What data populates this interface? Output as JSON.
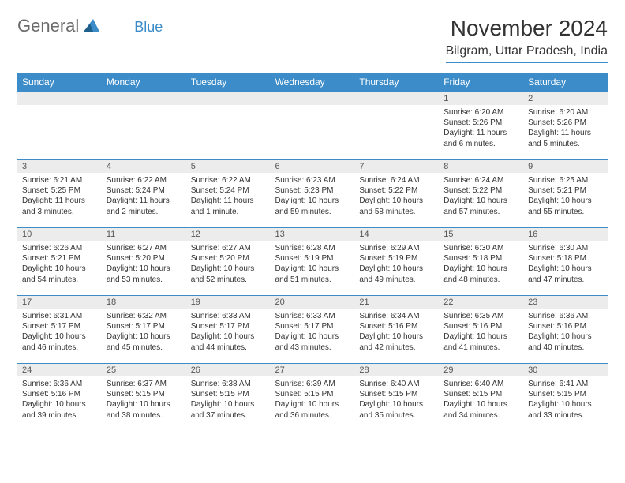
{
  "logo": {
    "text1": "General",
    "text2": "Blue"
  },
  "title": "November 2024",
  "location": "Bilgram, Uttar Pradesh, India",
  "colors": {
    "header_bg": "#3b8cc9",
    "header_text": "#ffffff",
    "daynum_bg": "#ececec",
    "body_text": "#333333",
    "logo_gray": "#6b6b6b",
    "logo_blue": "#3b8cc9",
    "border": "#3b8cc9"
  },
  "daysOfWeek": [
    "Sunday",
    "Monday",
    "Tuesday",
    "Wednesday",
    "Thursday",
    "Friday",
    "Saturday"
  ],
  "firstWeekday": 5,
  "daysInMonth": 30,
  "cells": {
    "1": {
      "sunrise": "6:20 AM",
      "sunset": "5:26 PM",
      "daylight": "11 hours and 6 minutes."
    },
    "2": {
      "sunrise": "6:20 AM",
      "sunset": "5:26 PM",
      "daylight": "11 hours and 5 minutes."
    },
    "3": {
      "sunrise": "6:21 AM",
      "sunset": "5:25 PM",
      "daylight": "11 hours and 3 minutes."
    },
    "4": {
      "sunrise": "6:22 AM",
      "sunset": "5:24 PM",
      "daylight": "11 hours and 2 minutes."
    },
    "5": {
      "sunrise": "6:22 AM",
      "sunset": "5:24 PM",
      "daylight": "11 hours and 1 minute."
    },
    "6": {
      "sunrise": "6:23 AM",
      "sunset": "5:23 PM",
      "daylight": "10 hours and 59 minutes."
    },
    "7": {
      "sunrise": "6:24 AM",
      "sunset": "5:22 PM",
      "daylight": "10 hours and 58 minutes."
    },
    "8": {
      "sunrise": "6:24 AM",
      "sunset": "5:22 PM",
      "daylight": "10 hours and 57 minutes."
    },
    "9": {
      "sunrise": "6:25 AM",
      "sunset": "5:21 PM",
      "daylight": "10 hours and 55 minutes."
    },
    "10": {
      "sunrise": "6:26 AM",
      "sunset": "5:21 PM",
      "daylight": "10 hours and 54 minutes."
    },
    "11": {
      "sunrise": "6:27 AM",
      "sunset": "5:20 PM",
      "daylight": "10 hours and 53 minutes."
    },
    "12": {
      "sunrise": "6:27 AM",
      "sunset": "5:20 PM",
      "daylight": "10 hours and 52 minutes."
    },
    "13": {
      "sunrise": "6:28 AM",
      "sunset": "5:19 PM",
      "daylight": "10 hours and 51 minutes."
    },
    "14": {
      "sunrise": "6:29 AM",
      "sunset": "5:19 PM",
      "daylight": "10 hours and 49 minutes."
    },
    "15": {
      "sunrise": "6:30 AM",
      "sunset": "5:18 PM",
      "daylight": "10 hours and 48 minutes."
    },
    "16": {
      "sunrise": "6:30 AM",
      "sunset": "5:18 PM",
      "daylight": "10 hours and 47 minutes."
    },
    "17": {
      "sunrise": "6:31 AM",
      "sunset": "5:17 PM",
      "daylight": "10 hours and 46 minutes."
    },
    "18": {
      "sunrise": "6:32 AM",
      "sunset": "5:17 PM",
      "daylight": "10 hours and 45 minutes."
    },
    "19": {
      "sunrise": "6:33 AM",
      "sunset": "5:17 PM",
      "daylight": "10 hours and 44 minutes."
    },
    "20": {
      "sunrise": "6:33 AM",
      "sunset": "5:17 PM",
      "daylight": "10 hours and 43 minutes."
    },
    "21": {
      "sunrise": "6:34 AM",
      "sunset": "5:16 PM",
      "daylight": "10 hours and 42 minutes."
    },
    "22": {
      "sunrise": "6:35 AM",
      "sunset": "5:16 PM",
      "daylight": "10 hours and 41 minutes."
    },
    "23": {
      "sunrise": "6:36 AM",
      "sunset": "5:16 PM",
      "daylight": "10 hours and 40 minutes."
    },
    "24": {
      "sunrise": "6:36 AM",
      "sunset": "5:16 PM",
      "daylight": "10 hours and 39 minutes."
    },
    "25": {
      "sunrise": "6:37 AM",
      "sunset": "5:15 PM",
      "daylight": "10 hours and 38 minutes."
    },
    "26": {
      "sunrise": "6:38 AM",
      "sunset": "5:15 PM",
      "daylight": "10 hours and 37 minutes."
    },
    "27": {
      "sunrise": "6:39 AM",
      "sunset": "5:15 PM",
      "daylight": "10 hours and 36 minutes."
    },
    "28": {
      "sunrise": "6:40 AM",
      "sunset": "5:15 PM",
      "daylight": "10 hours and 35 minutes."
    },
    "29": {
      "sunrise": "6:40 AM",
      "sunset": "5:15 PM",
      "daylight": "10 hours and 34 minutes."
    },
    "30": {
      "sunrise": "6:41 AM",
      "sunset": "5:15 PM",
      "daylight": "10 hours and 33 minutes."
    }
  },
  "labels": {
    "sunrise": "Sunrise:",
    "sunset": "Sunset:",
    "daylight": "Daylight:"
  }
}
